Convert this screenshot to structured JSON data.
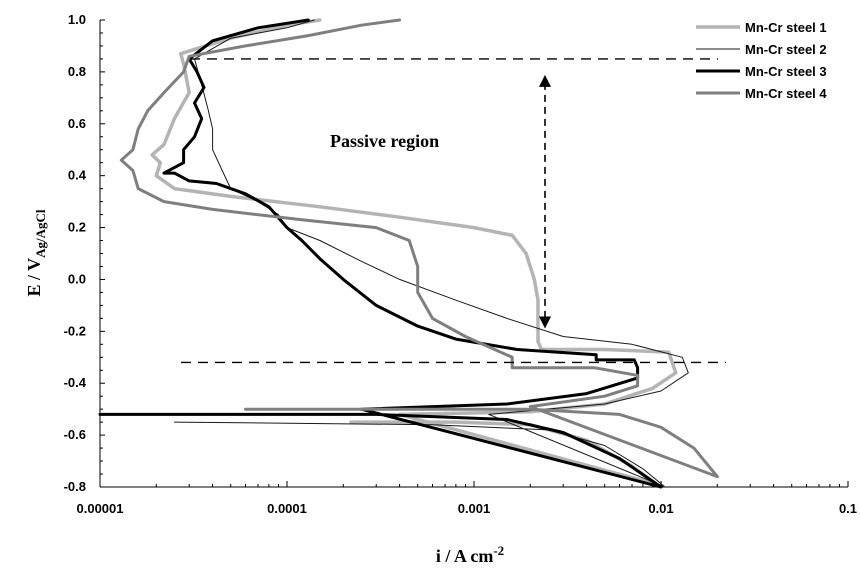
{
  "chart_data": {
    "type": "line",
    "title": "",
    "xlabel": "i / A cm",
    "xlabel_sup": "-2",
    "ylabel": "E / V",
    "ylabel_sub": "Ag/AgCl",
    "xscale": "log",
    "xlim": [
      1e-05,
      0.1
    ],
    "ylim": [
      -0.8,
      1.0
    ],
    "xticks": [
      "0.00001",
      "0.0001",
      "0.001",
      "0.01",
      "0.1"
    ],
    "yticks": [
      "-0.8",
      "-0.6",
      "-0.4",
      "-0.2",
      "0.0",
      "0.2",
      "0.4",
      "0.6",
      "0.8",
      "1.0"
    ],
    "grid": false,
    "legend_position": "top-right",
    "annotations": [
      {
        "text": "Passive region"
      }
    ],
    "reference_lines": {
      "passive_top_E": 0.85,
      "passive_bottom_E": -0.32
    },
    "series": [
      {
        "name": "Mn-Cr steel 1",
        "color": "#b4b4b4",
        "width": 3.5,
        "points": [
          [
            0.00022,
            -0.55
          ],
          [
            0.0008,
            -0.55
          ],
          [
            0.002,
            -0.56
          ],
          [
            0.004,
            -0.62
          ],
          [
            0.007,
            -0.72
          ],
          [
            0.0095,
            -0.79
          ],
          [
            0.0004,
            -0.52
          ],
          [
            0.002,
            -0.51
          ],
          [
            0.005,
            -0.48
          ],
          [
            0.009,
            -0.42
          ],
          [
            0.012,
            -0.36
          ],
          [
            0.011,
            -0.28
          ],
          [
            0.005,
            -0.27
          ],
          [
            0.0023,
            -0.27
          ],
          [
            0.0022,
            -0.24
          ],
          [
            0.0022,
            -0.16
          ],
          [
            0.0022,
            -0.08
          ],
          [
            0.0021,
            0.0
          ],
          [
            0.0019,
            0.1
          ],
          [
            0.0016,
            0.17
          ],
          [
            0.001,
            0.2
          ],
          [
            0.0004,
            0.24
          ],
          [
            0.00015,
            0.28
          ],
          [
            5e-05,
            0.32
          ],
          [
            2.5e-05,
            0.35
          ],
          [
            2e-05,
            0.4
          ],
          [
            2.1e-05,
            0.45
          ],
          [
            1.9e-05,
            0.48
          ],
          [
            2.2e-05,
            0.52
          ],
          [
            2.5e-05,
            0.62
          ],
          [
            3e-05,
            0.72
          ],
          [
            2.8e-05,
            0.83
          ],
          [
            2.7e-05,
            0.87
          ],
          [
            5e-05,
            0.93
          ],
          [
            0.0001,
            0.98
          ],
          [
            0.00015,
            1.0
          ]
        ]
      },
      {
        "name": "Mn-Cr steel 2",
        "color": "#1a1a1a",
        "width": 1,
        "points": [
          [
            2.5e-05,
            -0.55
          ],
          [
            0.0006,
            -0.56
          ],
          [
            0.0025,
            -0.58
          ],
          [
            0.005,
            -0.64
          ],
          [
            0.008,
            -0.73
          ],
          [
            0.0105,
            -0.8
          ],
          [
            0.0012,
            -0.52
          ],
          [
            0.005,
            -0.48
          ],
          [
            0.01,
            -0.43
          ],
          [
            0.014,
            -0.36
          ],
          [
            0.013,
            -0.3
          ],
          [
            0.007,
            -0.25
          ],
          [
            0.003,
            -0.22
          ],
          [
            0.0015,
            -0.15
          ],
          [
            0.0008,
            -0.08
          ],
          [
            0.0004,
            0.0
          ],
          [
            0.00025,
            0.07
          ],
          [
            0.00015,
            0.15
          ],
          [
            0.0001,
            0.2
          ],
          [
            9e-05,
            0.25
          ],
          [
            7e-05,
            0.3
          ],
          [
            5e-05,
            0.35
          ],
          [
            4.5e-05,
            0.42
          ],
          [
            4e-05,
            0.5
          ],
          [
            4e-05,
            0.58
          ],
          [
            3.8e-05,
            0.65
          ],
          [
            3.5e-05,
            0.75
          ],
          [
            3.2e-05,
            0.85
          ],
          [
            5e-05,
            0.93
          ],
          [
            0.0001,
            0.97
          ],
          [
            0.00014,
            1.0
          ]
        ]
      },
      {
        "name": "Mn-Cr steel 3",
        "color": "#000000",
        "width": 3,
        "points": [
          [
            1e-05,
            -0.52
          ],
          [
            0.0003,
            -0.52
          ],
          [
            0.0015,
            -0.54
          ],
          [
            0.003,
            -0.59
          ],
          [
            0.006,
            -0.69
          ],
          [
            0.01,
            -0.8
          ],
          [
            0.00025,
            -0.5
          ],
          [
            0.0015,
            -0.48
          ],
          [
            0.004,
            -0.44
          ],
          [
            0.0075,
            -0.38
          ],
          [
            0.0075,
            -0.34
          ],
          [
            0.0072,
            -0.31
          ],
          [
            0.0045,
            -0.31
          ],
          [
            0.0045,
            -0.29
          ],
          [
            0.0017,
            -0.27
          ],
          [
            0.0008,
            -0.23
          ],
          [
            0.0005,
            -0.18
          ],
          [
            0.0003,
            -0.1
          ],
          [
            0.0002,
            0.0
          ],
          [
            0.00015,
            0.08
          ],
          [
            0.00012,
            0.15
          ],
          [
            0.0001,
            0.2
          ],
          [
            8e-05,
            0.28
          ],
          [
            6e-05,
            0.33
          ],
          [
            4.2e-05,
            0.37
          ],
          [
            3e-05,
            0.38
          ],
          [
            2.5e-05,
            0.41
          ],
          [
            2.2e-05,
            0.41
          ],
          [
            2.8e-05,
            0.45
          ],
          [
            2.8e-05,
            0.5
          ],
          [
            3.2e-05,
            0.55
          ],
          [
            3.5e-05,
            0.62
          ],
          [
            3.2e-05,
            0.68
          ],
          [
            3.6e-05,
            0.74
          ],
          [
            3.3e-05,
            0.8
          ],
          [
            3e-05,
            0.85
          ],
          [
            4e-05,
            0.92
          ],
          [
            7e-05,
            0.97
          ],
          [
            0.00013,
            1.0
          ]
        ]
      },
      {
        "name": "Mn-Cr steel 4",
        "color": "#7f7f7f",
        "width": 3,
        "points": [
          [
            6e-05,
            -0.5
          ],
          [
            0.002,
            -0.5
          ],
          [
            0.006,
            -0.52
          ],
          [
            0.01,
            -0.57
          ],
          [
            0.015,
            -0.65
          ],
          [
            0.02,
            -0.76
          ],
          [
            0.002,
            -0.49
          ],
          [
            0.005,
            -0.45
          ],
          [
            0.0075,
            -0.41
          ],
          [
            0.0075,
            -0.37
          ],
          [
            0.0044,
            -0.34
          ],
          [
            0.0016,
            -0.34
          ],
          [
            0.0016,
            -0.3
          ],
          [
            0.0009,
            -0.22
          ],
          [
            0.0006,
            -0.15
          ],
          [
            0.0005,
            -0.05
          ],
          [
            0.0005,
            0.05
          ],
          [
            0.00045,
            0.15
          ],
          [
            0.0003,
            0.2
          ],
          [
            0.00012,
            0.23
          ],
          [
            4e-05,
            0.27
          ],
          [
            2.2e-05,
            0.3
          ],
          [
            1.6e-05,
            0.35
          ],
          [
            1.5e-05,
            0.42
          ],
          [
            1.3e-05,
            0.46
          ],
          [
            1.5e-05,
            0.5
          ],
          [
            1.6e-05,
            0.58
          ],
          [
            1.8e-05,
            0.65
          ],
          [
            2.2e-05,
            0.72
          ],
          [
            2.8e-05,
            0.8
          ],
          [
            3e-05,
            0.86
          ],
          [
            6e-05,
            0.9
          ],
          [
            0.00013,
            0.94
          ],
          [
            0.00025,
            0.98
          ],
          [
            0.0004,
            1.0
          ]
        ]
      }
    ]
  }
}
